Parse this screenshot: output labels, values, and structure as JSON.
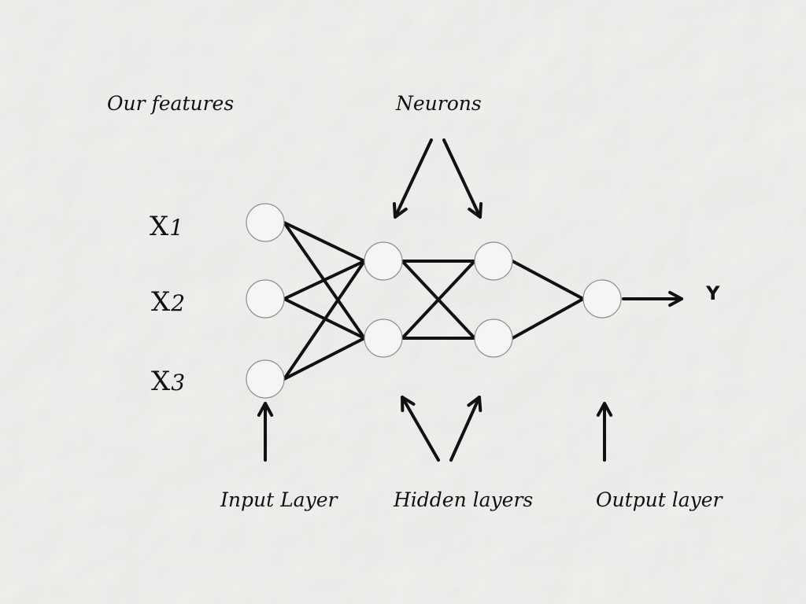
{
  "colors": {
    "background": "#f3f1ef",
    "ink": "#111111",
    "node_fill": "#f6f5f4",
    "node_stroke": "#8c8c8c"
  },
  "labels": {
    "features": "Our features",
    "neurons": "Neurons",
    "input_layer": "Input Layer",
    "hidden_layers": "Hidden layers",
    "output_layer": "Output layer",
    "output_y": "Y"
  },
  "inputs": [
    {
      "letter": "X",
      "index": "1"
    },
    {
      "letter": "X",
      "index": "2"
    },
    {
      "letter": "X",
      "index": "3"
    }
  ],
  "network": {
    "layers": [
      {
        "name": "input",
        "nodes": 3
      },
      {
        "name": "hidden",
        "nodes": 2
      },
      {
        "name": "hidden",
        "nodes": 2
      },
      {
        "name": "output",
        "nodes": 1
      }
    ],
    "connections": "fully-connected"
  }
}
